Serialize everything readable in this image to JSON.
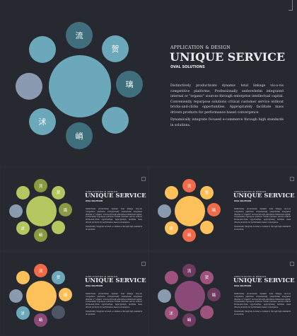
{
  "main": {
    "kicker": "APPLICATION & DESIGN",
    "title": "UNIQUE SERVICE",
    "subtitle": "OVAL SOLUTIONS",
    "paragraph1": "Distinctively productivate dynamic total linkage vis-a-vis competitive platforms. Professionally underwhelm integrated internal or \"organic\" sources through enterprise intellectual capital. Conveniently repurpose solutions critical customer service without bricks-and-clicks opportunities. Appropriately facilitate mass drivers products for performance based convergence.",
    "paragraph2": "Dynamically integrate focused e-commerce through high standards in solutions.",
    "colors": {
      "center": "#6ba8ba",
      "light": "#6ba8ba",
      "dark": "#3f6e7c",
      "grey": "#8a9ab0"
    },
    "circles": [
      {
        "label": "流",
        "tone": "dark"
      },
      {
        "label": "贺",
        "tone": "light"
      },
      {
        "label": "璃",
        "tone": "dark"
      },
      {
        "label": "",
        "tone": "light"
      },
      {
        "label": "峭",
        "tone": "dark"
      },
      {
        "label": "沭",
        "tone": "light"
      },
      {
        "label": "",
        "tone": "grey"
      },
      {
        "label": "",
        "tone": "light"
      }
    ]
  },
  "thumbs": [
    {
      "kicker": "APPLICATION & DESIGN",
      "title": "UNIQUE SERVICE",
      "subtitle": "OVAL SOLUTIONS",
      "center_color": "#b4c660",
      "circles": [
        {
          "label": "流",
          "color": "#8a9a40"
        },
        {
          "label": "贺",
          "color": "#b4c660"
        },
        {
          "label": "璃",
          "color": "#8a9a40"
        },
        {
          "label": "",
          "color": "#b4c660"
        },
        {
          "label": "峭",
          "color": "#8a9a40"
        },
        {
          "label": "沭",
          "color": "#b4c660"
        },
        {
          "label": "",
          "color": "#8a9ab0"
        },
        {
          "label": "",
          "color": "#b4c660"
        }
      ]
    },
    {
      "kicker": "APPLICATION & DESIGN",
      "title": "UNIQUE SERVICE",
      "subtitle": "OVAL SOLUTIONS",
      "center_color": "#fcc15a",
      "circles": [
        {
          "label": "流",
          "color": "#ef6b4a"
        },
        {
          "label": "贺",
          "color": "#fcc15a"
        },
        {
          "label": "璃",
          "color": "#ef6b4a"
        },
        {
          "label": "",
          "color": "#fcc15a"
        },
        {
          "label": "峭",
          "color": "#ef6b4a"
        },
        {
          "label": "沭",
          "color": "#fcc15a"
        },
        {
          "label": "",
          "color": "#8a9ab0"
        },
        {
          "label": "",
          "color": "#fcc15a"
        }
      ]
    },
    {
      "kicker": "APPLICATION & DESIGN",
      "title": "UNIQUE SERVICE",
      "subtitle": "OVAL SOLUTIONS",
      "center_color": "#fcc15a",
      "circles": [
        {
          "label": "流",
          "color": "#ef6b4a"
        },
        {
          "label": "贺",
          "color": "#6ba8ba"
        },
        {
          "label": "璃",
          "color": "#fcc15a"
        },
        {
          "label": "",
          "color": "#4d5566"
        },
        {
          "label": "峭",
          "color": "#8a4a78"
        },
        {
          "label": "沭",
          "color": "#6ba8ba"
        },
        {
          "label": "",
          "color": "#8a9ab0"
        },
        {
          "label": "",
          "color": "#fcc15a"
        }
      ]
    },
    {
      "kicker": "APPLICATION & DESIGN",
      "title": "UNIQUE SERVICE",
      "subtitle": "OVAL SOLUTIONS",
      "center_color": "#8a4a78",
      "circles": [
        {
          "label": "流",
          "color": "#6e3a60"
        },
        {
          "label": "贺",
          "color": "#a0527f"
        },
        {
          "label": "璃",
          "color": "#6e3a60"
        },
        {
          "label": "",
          "color": "#a0527f"
        },
        {
          "label": "峭",
          "color": "#6e3a60"
        },
        {
          "label": "沭",
          "color": "#a0527f"
        },
        {
          "label": "",
          "color": "#8a9ab0"
        },
        {
          "label": "",
          "color": "#a0527f"
        }
      ]
    }
  ]
}
